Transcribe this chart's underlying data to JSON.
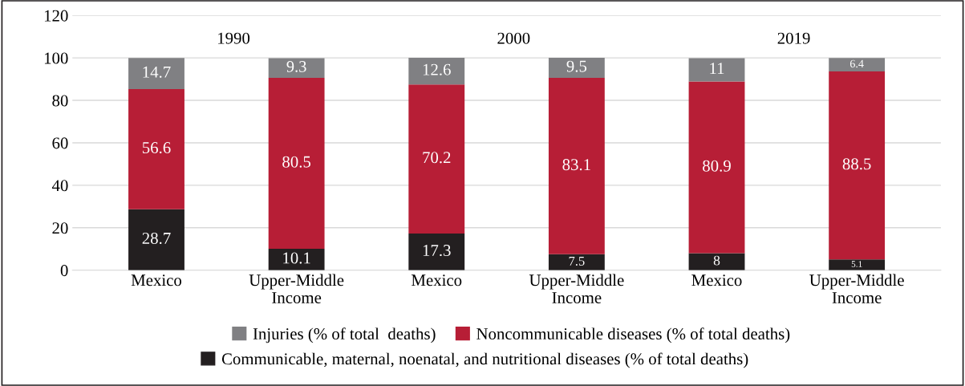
{
  "chart_data": {
    "type": "bar",
    "stacked": true,
    "categories": [
      "Mexico",
      "Upper-Middle\nIncome",
      "Mexico",
      "Upper-Middle\nIncome",
      "Mexico",
      "Upper-Middle\nIncome"
    ],
    "series": [
      {
        "name": "Communicable, maternal, noenatal, and nutritional diseases (% of total deaths)",
        "color": "#231f20",
        "values": [
          28.7,
          10.1,
          17.3,
          7.5,
          8,
          5.1
        ]
      },
      {
        "name": "Noncommunicable diseases (% of total deaths)",
        "color": "#b71e36",
        "values": [
          56.6,
          80.5,
          70.2,
          83.1,
          80.9,
          88.5
        ]
      },
      {
        "name": "Injuries (% of total  deaths)",
        "color": "#808083",
        "values": [
          14.7,
          9.3,
          12.6,
          9.5,
          11,
          6.4
        ]
      }
    ],
    "annotations": [
      "1990",
      "2000",
      "2019"
    ],
    "ylim": [
      0,
      120
    ],
    "yticks": [
      0,
      20,
      40,
      60,
      80,
      100,
      120
    ],
    "grid": "y",
    "data_labels": true,
    "legend": "bottom"
  }
}
